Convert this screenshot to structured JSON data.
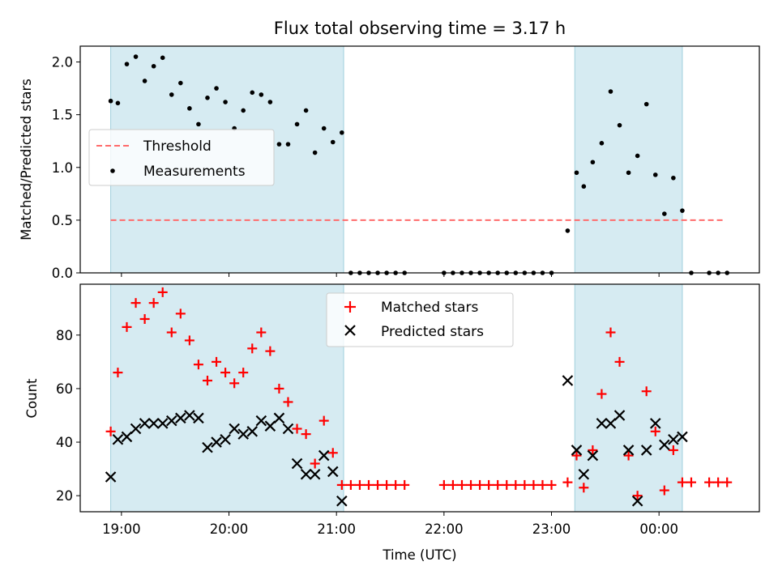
{
  "chart_data": [
    {
      "type": "scatter",
      "title": "Flux total observing time = 3.17 h",
      "ylabel": "Matched/Predicted stars",
      "ylim": [
        0,
        2.15
      ],
      "yticks": [
        "0.0",
        "0.5",
        "1.0",
        "1.5",
        "2.0"
      ],
      "ytick_values": [
        0,
        0.5,
        1.0,
        1.5,
        2.0
      ],
      "threshold": {
        "name": "Threshold",
        "y": 0.5,
        "x_start": "18:54",
        "x_end": "00:36"
      },
      "legend": {
        "location": "center-left",
        "entries": [
          "Threshold",
          "Measurements"
        ]
      },
      "series": [
        {
          "name": "Measurements",
          "points": [
            [
              "18:54",
              1.63
            ],
            [
              "18:58",
              1.61
            ],
            [
              "19:03",
              1.98
            ],
            [
              "19:08",
              2.05
            ],
            [
              "19:13",
              1.82
            ],
            [
              "19:18",
              1.96
            ],
            [
              "19:23",
              2.04
            ],
            [
              "19:28",
              1.69
            ],
            [
              "19:33",
              1.8
            ],
            [
              "19:38",
              1.56
            ],
            [
              "19:43",
              1.41
            ],
            [
              "19:48",
              1.66
            ],
            [
              "19:53",
              1.75
            ],
            [
              "19:58",
              1.62
            ],
            [
              "20:03",
              1.37
            ],
            [
              "20:08",
              1.54
            ],
            [
              "20:13",
              1.71
            ],
            [
              "20:18",
              1.69
            ],
            [
              "20:23",
              1.62
            ],
            [
              "20:28",
              1.22
            ],
            [
              "20:33",
              1.22
            ],
            [
              "20:38",
              1.41
            ],
            [
              "20:43",
              1.54
            ],
            [
              "20:48",
              1.14
            ],
            [
              "20:53",
              1.37
            ],
            [
              "20:58",
              1.24
            ],
            [
              "21:03",
              1.33
            ],
            [
              "21:08",
              0
            ],
            [
              "21:13",
              0
            ],
            [
              "21:18",
              0
            ],
            [
              "21:23",
              0
            ],
            [
              "21:28",
              0
            ],
            [
              "21:33",
              0
            ],
            [
              "21:38",
              0
            ],
            [
              "22:00",
              0
            ],
            [
              "22:05",
              0
            ],
            [
              "22:10",
              0
            ],
            [
              "22:15",
              0
            ],
            [
              "22:20",
              0
            ],
            [
              "22:25",
              0
            ],
            [
              "22:30",
              0
            ],
            [
              "22:35",
              0
            ],
            [
              "22:40",
              0
            ],
            [
              "22:45",
              0
            ],
            [
              "22:50",
              0
            ],
            [
              "22:55",
              0
            ],
            [
              "23:00",
              0
            ],
            [
              "23:09",
              0.4
            ],
            [
              "23:14",
              0.95
            ],
            [
              "23:18",
              0.82
            ],
            [
              "23:23",
              1.05
            ],
            [
              "23:28",
              1.23
            ],
            [
              "23:33",
              1.72
            ],
            [
              "23:38",
              1.4
            ],
            [
              "23:43",
              0.95
            ],
            [
              "23:48",
              1.11
            ],
            [
              "23:53",
              1.6
            ],
            [
              "23:58",
              0.93
            ],
            [
              "00:03",
              0.56
            ],
            [
              "00:08",
              0.9
            ],
            [
              "00:13",
              0.59
            ],
            [
              "00:18",
              0
            ],
            [
              "00:28",
              0
            ],
            [
              "00:33",
              0
            ],
            [
              "00:38",
              0
            ]
          ]
        }
      ]
    },
    {
      "type": "scatter",
      "xlabel": "Time (UTC)",
      "ylabel": "Count",
      "ylim": [
        14,
        99
      ],
      "yticks": [
        "20",
        "40",
        "60",
        "80"
      ],
      "ytick_values": [
        20,
        40,
        60,
        80
      ],
      "xticks": [
        "19:00",
        "20:00",
        "21:00",
        "22:00",
        "23:00",
        "00:00"
      ],
      "xtick_values": [
        "19:00",
        "20:00",
        "21:00",
        "22:00",
        "23:00",
        "24:00"
      ],
      "xlim": [
        "18:37",
        "00:56"
      ],
      "shaded_intervals": [
        [
          "18:54",
          "21:04"
        ],
        [
          "23:13",
          "00:13"
        ]
      ],
      "legend": {
        "location": "upper-center",
        "entries": [
          "Matched stars",
          "Predicted stars"
        ]
      },
      "series": [
        {
          "name": "Matched stars",
          "color": "#ff0000",
          "marker": "+",
          "points": [
            [
              "18:54",
              44
            ],
            [
              "18:58",
              66
            ],
            [
              "19:03",
              83
            ],
            [
              "19:08",
              92
            ],
            [
              "19:13",
              86
            ],
            [
              "19:18",
              92
            ],
            [
              "19:23",
              96
            ],
            [
              "19:28",
              81
            ],
            [
              "19:33",
              88
            ],
            [
              "19:38",
              78
            ],
            [
              "19:43",
              69
            ],
            [
              "19:48",
              63
            ],
            [
              "19:53",
              70
            ],
            [
              "19:58",
              66
            ],
            [
              "20:03",
              62
            ],
            [
              "20:08",
              66
            ],
            [
              "20:13",
              75
            ],
            [
              "20:18",
              81
            ],
            [
              "20:23",
              74
            ],
            [
              "20:28",
              60
            ],
            [
              "20:33",
              55
            ],
            [
              "20:38",
              45
            ],
            [
              "20:43",
              43
            ],
            [
              "20:48",
              32
            ],
            [
              "20:53",
              48
            ],
            [
              "20:58",
              36
            ],
            [
              "21:03",
              24
            ],
            [
              "21:08",
              24
            ],
            [
              "21:13",
              24
            ],
            [
              "21:18",
              24
            ],
            [
              "21:23",
              24
            ],
            [
              "21:28",
              24
            ],
            [
              "21:33",
              24
            ],
            [
              "21:38",
              24
            ],
            [
              "22:00",
              24
            ],
            [
              "22:05",
              24
            ],
            [
              "22:10",
              24
            ],
            [
              "22:15",
              24
            ],
            [
              "22:20",
              24
            ],
            [
              "22:25",
              24
            ],
            [
              "22:30",
              24
            ],
            [
              "22:35",
              24
            ],
            [
              "22:40",
              24
            ],
            [
              "22:45",
              24
            ],
            [
              "22:50",
              24
            ],
            [
              "22:55",
              24
            ],
            [
              "23:00",
              24
            ],
            [
              "23:09",
              25
            ],
            [
              "23:14",
              35
            ],
            [
              "23:18",
              23
            ],
            [
              "23:23",
              37
            ],
            [
              "23:28",
              58
            ],
            [
              "23:33",
              81
            ],
            [
              "23:38",
              70
            ],
            [
              "23:43",
              35
            ],
            [
              "23:48",
              20
            ],
            [
              "23:53",
              59
            ],
            [
              "23:58",
              44
            ],
            [
              "00:03",
              22
            ],
            [
              "00:08",
              37
            ],
            [
              "00:13",
              25
            ],
            [
              "00:18",
              25
            ],
            [
              "00:28",
              25
            ],
            [
              "00:33",
              25
            ],
            [
              "00:38",
              25
            ]
          ]
        },
        {
          "name": "Predicted stars",
          "color": "#000000",
          "marker": "x",
          "points": [
            [
              "18:54",
              27
            ],
            [
              "18:58",
              41
            ],
            [
              "19:03",
              42
            ],
            [
              "19:08",
              45
            ],
            [
              "19:13",
              47
            ],
            [
              "19:18",
              47
            ],
            [
              "19:23",
              47
            ],
            [
              "19:28",
              48
            ],
            [
              "19:33",
              49
            ],
            [
              "19:38",
              50
            ],
            [
              "19:43",
              49
            ],
            [
              "19:48",
              38
            ],
            [
              "19:53",
              40
            ],
            [
              "19:58",
              41
            ],
            [
              "20:03",
              45
            ],
            [
              "20:08",
              43
            ],
            [
              "20:13",
              44
            ],
            [
              "20:18",
              48
            ],
            [
              "20:23",
              46
            ],
            [
              "20:28",
              49
            ],
            [
              "20:33",
              45
            ],
            [
              "20:38",
              32
            ],
            [
              "20:43",
              28
            ],
            [
              "20:48",
              28
            ],
            [
              "20:53",
              35
            ],
            [
              "20:58",
              29
            ],
            [
              "21:03",
              18
            ],
            [
              "23:09",
              63
            ],
            [
              "23:14",
              37
            ],
            [
              "23:18",
              28
            ],
            [
              "23:23",
              35
            ],
            [
              "23:28",
              47
            ],
            [
              "23:33",
              47
            ],
            [
              "23:38",
              50
            ],
            [
              "23:43",
              37
            ],
            [
              "23:48",
              18
            ],
            [
              "23:53",
              37
            ],
            [
              "23:58",
              47
            ],
            [
              "00:03",
              39
            ],
            [
              "00:08",
              41
            ],
            [
              "00:13",
              42
            ]
          ]
        }
      ]
    }
  ]
}
